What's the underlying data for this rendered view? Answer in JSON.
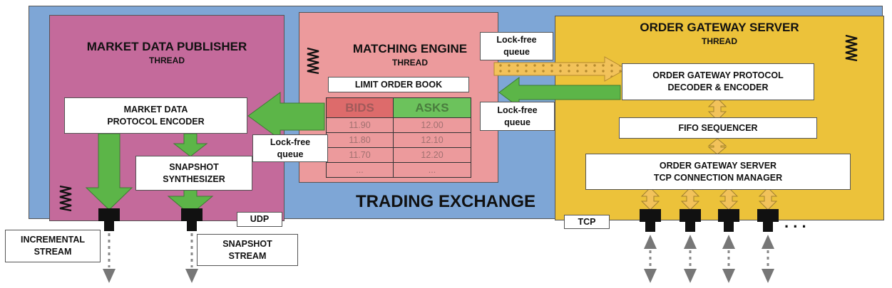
{
  "exchange": {
    "title": "TRADING EXCHANGE"
  },
  "market_data_publisher": {
    "title": "MARKET DATA PUBLISHER",
    "subtitle": "THREAD",
    "encoder": "MARKET DATA\nPROTOCOL ENCODER",
    "synthesizer": "SNAPSHOT\nSYNTHESIZER"
  },
  "matching_engine": {
    "title": "MATCHING ENGINE",
    "subtitle": "THREAD",
    "book_title": "LIMIT ORDER BOOK",
    "headers": {
      "bids": "BIDS",
      "asks": "ASKS"
    },
    "rows": [
      {
        "bid": "11.90",
        "ask": "12.00"
      },
      {
        "bid": "11.80",
        "ask": "12.10"
      },
      {
        "bid": "11.70",
        "ask": "12.20"
      },
      {
        "bid": "...",
        "ask": "..."
      }
    ]
  },
  "order_gateway_server": {
    "title": "ORDER GATEWAY SERVER",
    "subtitle": "THREAD",
    "protocol": "ORDER GATEWAY PROTOCOL\nDECODER & ENCODER",
    "fifo": "FIFO SEQUENCER",
    "tcp_manager": "ORDER GATEWAY SERVER\nTCP CONNECTION MANAGER"
  },
  "queues": {
    "md_queue": "Lock-free\nqueue",
    "ogs_in_queue": "Lock-free\nqueue",
    "ogs_out_queue": "Lock-free\nqueue"
  },
  "streams": {
    "udp": "UDP",
    "tcp": "TCP",
    "incremental": "INCREMENTAL\nSTREAM",
    "snapshot": "SNAPSHOT\nSTREAM",
    "ellipsis": ". . ."
  },
  "colors": {
    "exchange_bg": "#7ea6d6",
    "publisher_bg": "#c46a9b",
    "engine_bg": "#ec9a9c",
    "gateway_bg": "#ecc23a",
    "green_arrow": "#5cb548",
    "orange_arrow": "#f2c25a"
  }
}
